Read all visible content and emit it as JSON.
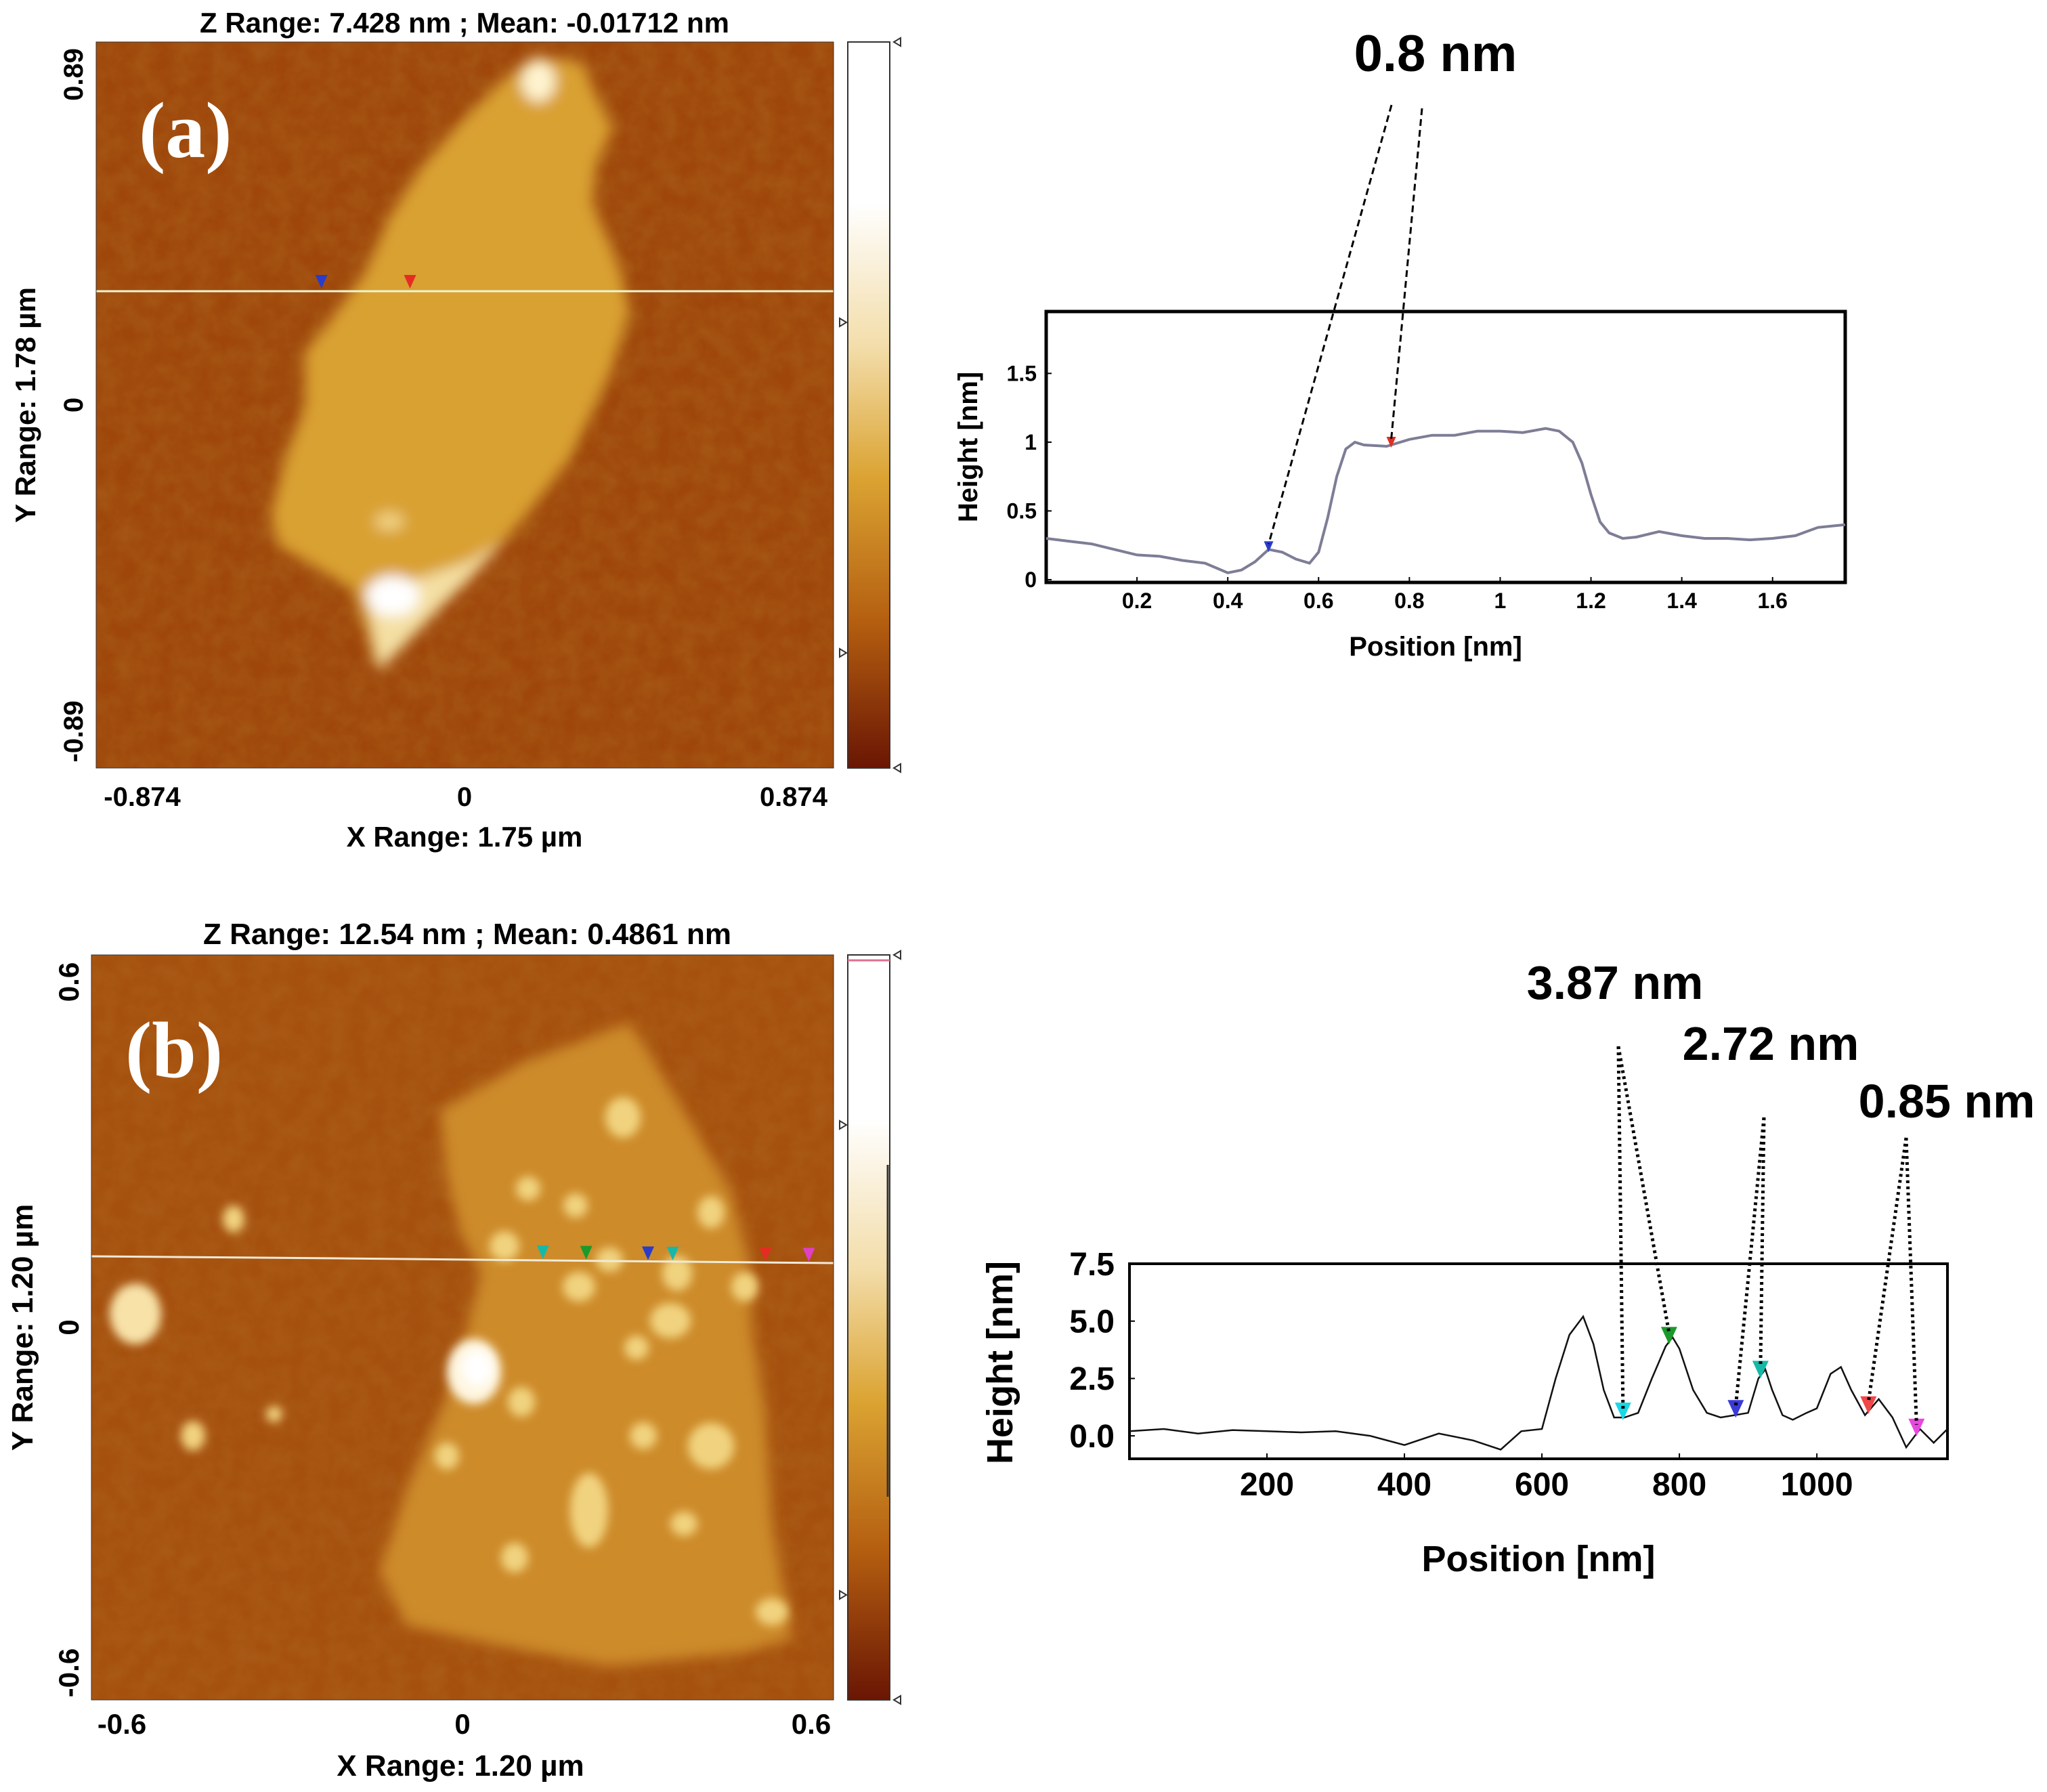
{
  "chart_data": [
    {
      "type": "heatmap",
      "panel_label": "(a)",
      "title": "Z Range:  7.428 nm ; Mean: -0.01712 nm",
      "xlabel": "X Range:  1.75 µm",
      "ylabel": "Y Range:  1.78 µm",
      "x_ticks": [
        "-0.874",
        "0",
        "0.874"
      ],
      "y_ticks": [
        "0.89",
        "0",
        "-0.89"
      ],
      "xlim": [
        -0.874,
        0.874
      ],
      "ylim": [
        -0.89,
        0.89
      ],
      "colormap": [
        "#ffffff",
        "#f6e4b2",
        "#d8a11c",
        "#b96212",
        "#6e1604"
      ],
      "markers": [
        {
          "color": "#2a3cc8",
          "x": -0.34
        },
        {
          "color": "#e52c22",
          "x": -0.13
        }
      ]
    },
    {
      "type": "line",
      "title": "0.8 nm",
      "xlabel": "Position [nm]",
      "ylabel": "Height [nm]",
      "x_ticks": [
        "0.2",
        "0.4",
        "0.6",
        "0.8",
        "1",
        "1.2",
        "1.4",
        "1.6"
      ],
      "y_ticks": [
        "0",
        "0.5",
        "1",
        "1.5"
      ],
      "xlim": [
        0,
        1.76
      ],
      "ylim": [
        -0.02,
        1.95
      ],
      "x": [
        0,
        0.05,
        0.1,
        0.15,
        0.2,
        0.25,
        0.3,
        0.35,
        0.4,
        0.43,
        0.46,
        0.49,
        0.52,
        0.55,
        0.58,
        0.6,
        0.62,
        0.64,
        0.66,
        0.68,
        0.7,
        0.75,
        0.8,
        0.85,
        0.9,
        0.95,
        1.0,
        1.05,
        1.1,
        1.13,
        1.16,
        1.18,
        1.2,
        1.22,
        1.24,
        1.27,
        1.3,
        1.35,
        1.4,
        1.45,
        1.5,
        1.55,
        1.6,
        1.65,
        1.7,
        1.76
      ],
      "y": [
        0.3,
        0.28,
        0.26,
        0.22,
        0.18,
        0.17,
        0.14,
        0.12,
        0.05,
        0.07,
        0.13,
        0.22,
        0.2,
        0.15,
        0.12,
        0.2,
        0.45,
        0.75,
        0.95,
        1.0,
        0.98,
        0.97,
        1.02,
        1.05,
        1.05,
        1.08,
        1.08,
        1.07,
        1.1,
        1.08,
        1.0,
        0.85,
        0.62,
        0.42,
        0.34,
        0.3,
        0.31,
        0.35,
        0.32,
        0.3,
        0.3,
        0.29,
        0.3,
        0.32,
        0.38,
        0.4
      ],
      "markers": [
        {
          "color": "#2a3cc8",
          "x": 0.49
        },
        {
          "color": "#e52c22",
          "x": 0.76
        }
      ],
      "annotations": [
        {
          "text": "0.8 nm",
          "from_markers": [
            0,
            1
          ]
        }
      ]
    },
    {
      "type": "heatmap",
      "panel_label": "(b)",
      "title": "Z Range:  12.54 nm ; Mean: 0.4861 nm",
      "xlabel": "X Range:  1.20 µm",
      "ylabel": "Y Range:  1.20 µm",
      "x_ticks": [
        "-0.6",
        "0",
        "0.6"
      ],
      "y_ticks": [
        "0.6",
        "0",
        "-0.6"
      ],
      "xlim": [
        -0.6,
        0.6
      ],
      "ylim": [
        -0.6,
        0.6
      ],
      "colormap": [
        "#ffffff",
        "#f6e4b2",
        "#d8a11c",
        "#b96212",
        "#6e1604"
      ],
      "markers": [
        {
          "color": "#18b8a8",
          "x": 0.13
        },
        {
          "color": "#1a9a2a",
          "x": 0.2
        },
        {
          "color": "#2a3cc8",
          "x": 0.3
        },
        {
          "color": "#18b8a8",
          "x": 0.34
        },
        {
          "color": "#e52c22",
          "x": 0.49
        },
        {
          "color": "#e040c8",
          "x": 0.56
        }
      ]
    },
    {
      "type": "line",
      "title": "",
      "xlabel": "Position [nm]",
      "ylabel": "Height [nm]",
      "x_ticks": [
        "200",
        "400",
        "600",
        "800",
        "1000"
      ],
      "y_ticks": [
        "0.0",
        "2.5",
        "5.0",
        "7.5"
      ],
      "xlim": [
        0,
        1190
      ],
      "ylim": [
        -1,
        7.5
      ],
      "x": [
        0,
        50,
        100,
        150,
        200,
        250,
        300,
        350,
        400,
        450,
        500,
        540,
        570,
        600,
        620,
        640,
        660,
        675,
        690,
        705,
        720,
        740,
        760,
        780,
        790,
        800,
        820,
        840,
        860,
        880,
        900,
        915,
        925,
        935,
        950,
        965,
        985,
        1000,
        1020,
        1035,
        1050,
        1070,
        1090,
        1110,
        1130,
        1150,
        1170,
        1190
      ],
      "y": [
        0.2,
        0.3,
        0.1,
        0.25,
        0.2,
        0.15,
        0.2,
        0.0,
        -0.4,
        0.1,
        -0.2,
        -0.6,
        0.2,
        0.3,
        2.5,
        4.4,
        5.2,
        4.0,
        2.0,
        0.8,
        0.8,
        1.0,
        2.5,
        3.9,
        4.3,
        3.8,
        2.0,
        1.0,
        0.8,
        0.9,
        1.0,
        2.5,
        2.9,
        2.0,
        0.9,
        0.7,
        1.0,
        1.2,
        2.7,
        3.0,
        2.0,
        0.9,
        1.6,
        0.8,
        -0.5,
        0.3,
        -0.3,
        0.3
      ],
      "markers": [
        {
          "color": "#19d8e8",
          "x": 718
        },
        {
          "color": "#1a9a2a",
          "x": 785
        },
        {
          "color": "#3a3ad8",
          "x": 882
        },
        {
          "color": "#18b8a8",
          "x": 918
        },
        {
          "color": "#f04848",
          "x": 1075
        },
        {
          "color": "#e848e0",
          "x": 1145
        }
      ],
      "annotations": [
        {
          "text": "3.87 nm",
          "from_markers": [
            0,
            1
          ]
        },
        {
          "text": "2.72 nm",
          "from_markers": [
            2,
            3
          ]
        },
        {
          "text": "0.85 nm",
          "from_markers": [
            4,
            5
          ]
        }
      ]
    }
  ]
}
